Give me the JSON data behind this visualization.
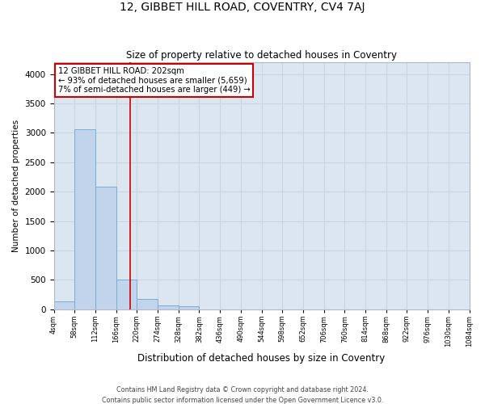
{
  "title": "12, GIBBET HILL ROAD, COVENTRY, CV4 7AJ",
  "subtitle": "Size of property relative to detached houses in Coventry",
  "xlabel": "Distribution of detached houses by size in Coventry",
  "ylabel": "Number of detached properties",
  "bin_edges": [
    4,
    58,
    112,
    166,
    220,
    274,
    328,
    382,
    436,
    490,
    544,
    598,
    652,
    706,
    760,
    814,
    868,
    922,
    976,
    1030,
    1084
  ],
  "bar_heights": [
    130,
    3060,
    2080,
    510,
    180,
    70,
    50,
    0,
    0,
    0,
    0,
    0,
    0,
    0,
    0,
    0,
    0,
    0,
    0,
    0
  ],
  "bar_color": "#c2d4ec",
  "bar_edge_color": "#7aadd4",
  "grid_color": "#c8d4e4",
  "background_color": "#dce6f0",
  "vline_x": 202,
  "vline_color": "#cc0000",
  "annotation_text": "12 GIBBET HILL ROAD: 202sqm\n← 93% of detached houses are smaller (5,659)\n7% of semi-detached houses are larger (449) →",
  "annotation_box_color": "#ffffff",
  "annotation_box_edge": "#cc0000",
  "ylim": [
    0,
    4200
  ],
  "yticks": [
    0,
    500,
    1000,
    1500,
    2000,
    2500,
    3000,
    3500,
    4000
  ],
  "footer_line1": "Contains HM Land Registry data © Crown copyright and database right 2024.",
  "footer_line2": "Contains public sector information licensed under the Open Government Licence v3.0."
}
